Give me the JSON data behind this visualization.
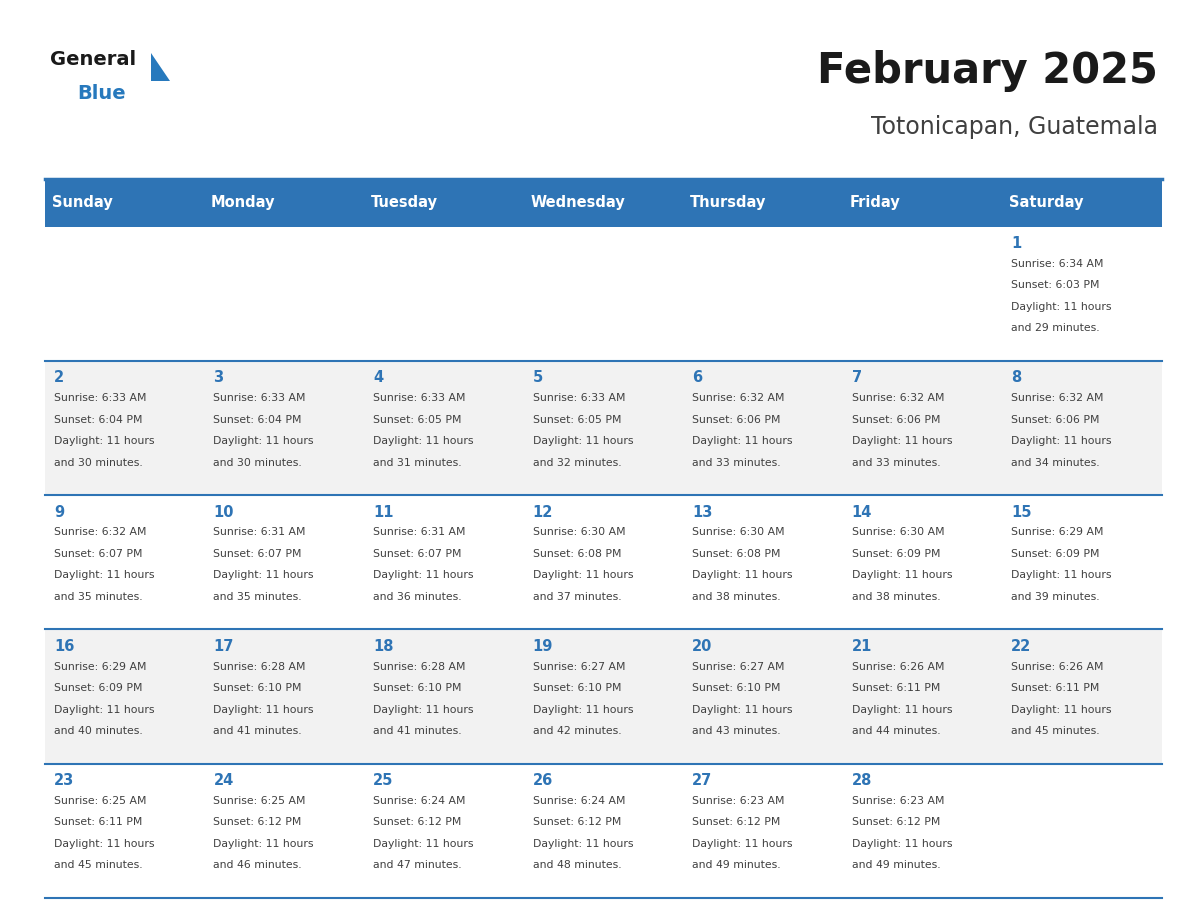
{
  "title": "February 2025",
  "subtitle": "Totonicapan, Guatemala",
  "days_of_week": [
    "Sunday",
    "Monday",
    "Tuesday",
    "Wednesday",
    "Thursday",
    "Friday",
    "Saturday"
  ],
  "header_bg": "#2E74B5",
  "header_text": "#FFFFFF",
  "cell_bg_even": "#FFFFFF",
  "cell_bg_odd": "#F2F2F2",
  "day_num_color": "#2E74B5",
  "info_text_color": "#404040",
  "divider_color": "#2E74B5",
  "title_color": "#1A1A1A",
  "subtitle_color": "#404040",
  "logo_general_color": "#1A1A1A",
  "logo_blue_color": "#2779BD",
  "calendar_data": {
    "1": {
      "sunrise": "6:34 AM",
      "sunset": "6:03 PM",
      "daylight_hours": 11,
      "daylight_minutes": 29
    },
    "2": {
      "sunrise": "6:33 AM",
      "sunset": "6:04 PM",
      "daylight_hours": 11,
      "daylight_minutes": 30
    },
    "3": {
      "sunrise": "6:33 AM",
      "sunset": "6:04 PM",
      "daylight_hours": 11,
      "daylight_minutes": 30
    },
    "4": {
      "sunrise": "6:33 AM",
      "sunset": "6:05 PM",
      "daylight_hours": 11,
      "daylight_minutes": 31
    },
    "5": {
      "sunrise": "6:33 AM",
      "sunset": "6:05 PM",
      "daylight_hours": 11,
      "daylight_minutes": 32
    },
    "6": {
      "sunrise": "6:32 AM",
      "sunset": "6:06 PM",
      "daylight_hours": 11,
      "daylight_minutes": 33
    },
    "7": {
      "sunrise": "6:32 AM",
      "sunset": "6:06 PM",
      "daylight_hours": 11,
      "daylight_minutes": 33
    },
    "8": {
      "sunrise": "6:32 AM",
      "sunset": "6:06 PM",
      "daylight_hours": 11,
      "daylight_minutes": 34
    },
    "9": {
      "sunrise": "6:32 AM",
      "sunset": "6:07 PM",
      "daylight_hours": 11,
      "daylight_minutes": 35
    },
    "10": {
      "sunrise": "6:31 AM",
      "sunset": "6:07 PM",
      "daylight_hours": 11,
      "daylight_minutes": 35
    },
    "11": {
      "sunrise": "6:31 AM",
      "sunset": "6:07 PM",
      "daylight_hours": 11,
      "daylight_minutes": 36
    },
    "12": {
      "sunrise": "6:30 AM",
      "sunset": "6:08 PM",
      "daylight_hours": 11,
      "daylight_minutes": 37
    },
    "13": {
      "sunrise": "6:30 AM",
      "sunset": "6:08 PM",
      "daylight_hours": 11,
      "daylight_minutes": 38
    },
    "14": {
      "sunrise": "6:30 AM",
      "sunset": "6:09 PM",
      "daylight_hours": 11,
      "daylight_minutes": 38
    },
    "15": {
      "sunrise": "6:29 AM",
      "sunset": "6:09 PM",
      "daylight_hours": 11,
      "daylight_minutes": 39
    },
    "16": {
      "sunrise": "6:29 AM",
      "sunset": "6:09 PM",
      "daylight_hours": 11,
      "daylight_minutes": 40
    },
    "17": {
      "sunrise": "6:28 AM",
      "sunset": "6:10 PM",
      "daylight_hours": 11,
      "daylight_minutes": 41
    },
    "18": {
      "sunrise": "6:28 AM",
      "sunset": "6:10 PM",
      "daylight_hours": 11,
      "daylight_minutes": 41
    },
    "19": {
      "sunrise": "6:27 AM",
      "sunset": "6:10 PM",
      "daylight_hours": 11,
      "daylight_minutes": 42
    },
    "20": {
      "sunrise": "6:27 AM",
      "sunset": "6:10 PM",
      "daylight_hours": 11,
      "daylight_minutes": 43
    },
    "21": {
      "sunrise": "6:26 AM",
      "sunset": "6:11 PM",
      "daylight_hours": 11,
      "daylight_minutes": 44
    },
    "22": {
      "sunrise": "6:26 AM",
      "sunset": "6:11 PM",
      "daylight_hours": 11,
      "daylight_minutes": 45
    },
    "23": {
      "sunrise": "6:25 AM",
      "sunset": "6:11 PM",
      "daylight_hours": 11,
      "daylight_minutes": 45
    },
    "24": {
      "sunrise": "6:25 AM",
      "sunset": "6:12 PM",
      "daylight_hours": 11,
      "daylight_minutes": 46
    },
    "25": {
      "sunrise": "6:24 AM",
      "sunset": "6:12 PM",
      "daylight_hours": 11,
      "daylight_minutes": 47
    },
    "26": {
      "sunrise": "6:24 AM",
      "sunset": "6:12 PM",
      "daylight_hours": 11,
      "daylight_minutes": 48
    },
    "27": {
      "sunrise": "6:23 AM",
      "sunset": "6:12 PM",
      "daylight_hours": 11,
      "daylight_minutes": 49
    },
    "28": {
      "sunrise": "6:23 AM",
      "sunset": "6:12 PM",
      "daylight_hours": 11,
      "daylight_minutes": 49
    }
  },
  "week_layout": [
    [
      null,
      null,
      null,
      null,
      null,
      null,
      1
    ],
    [
      2,
      3,
      4,
      5,
      6,
      7,
      8
    ],
    [
      9,
      10,
      11,
      12,
      13,
      14,
      15
    ],
    [
      16,
      17,
      18,
      19,
      20,
      21,
      22
    ],
    [
      23,
      24,
      25,
      26,
      27,
      28,
      null
    ]
  ]
}
